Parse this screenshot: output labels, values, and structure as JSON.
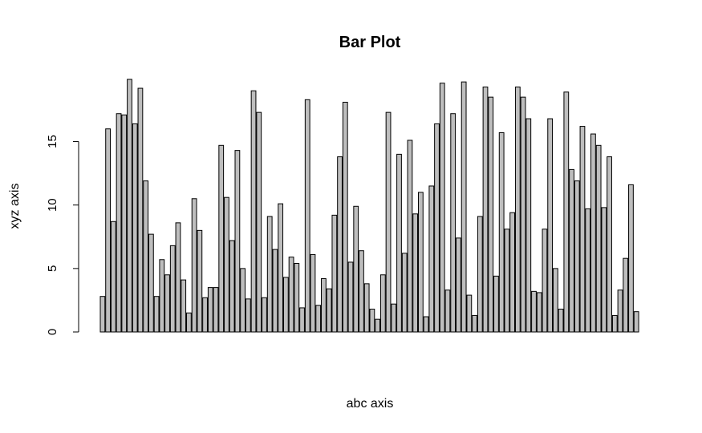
{
  "chart_data": {
    "type": "bar",
    "title": "Bar Plot",
    "xlabel": "abc axis",
    "ylabel": "xyz axis",
    "ylim": [
      0,
      20
    ],
    "yticks": [
      0,
      5,
      10,
      15
    ],
    "bar_color": "#bebebe",
    "border_color": "#000000",
    "values": [
      2.8,
      16.0,
      8.7,
      17.2,
      17.1,
      19.9,
      16.4,
      19.2,
      11.9,
      7.7,
      2.8,
      5.7,
      4.5,
      6.8,
      8.6,
      4.1,
      1.5,
      10.5,
      8.0,
      2.7,
      3.5,
      3.5,
      14.7,
      10.6,
      7.2,
      14.3,
      5.0,
      2.6,
      19.0,
      17.3,
      2.7,
      9.1,
      6.5,
      10.1,
      4.3,
      5.9,
      5.4,
      1.9,
      18.3,
      6.1,
      2.1,
      4.2,
      3.4,
      9.2,
      13.8,
      18.1,
      5.5,
      9.9,
      6.4,
      3.8,
      1.8,
      1.0,
      4.5,
      17.3,
      2.2,
      14.0,
      6.2,
      15.1,
      9.3,
      11.0,
      1.2,
      11.5,
      16.4,
      19.6,
      3.3,
      17.2,
      7.4,
      19.7,
      2.9,
      1.3,
      9.1,
      19.3,
      18.5,
      4.4,
      15.7,
      8.1,
      9.4,
      19.3,
      18.5,
      16.8,
      3.2,
      3.1,
      8.1,
      16.8,
      5.0,
      1.8,
      18.9,
      12.8,
      11.9,
      16.2,
      9.7,
      15.6,
      14.7,
      9.8,
      13.8,
      1.3,
      3.3,
      5.8,
      11.6,
      1.6
    ]
  }
}
